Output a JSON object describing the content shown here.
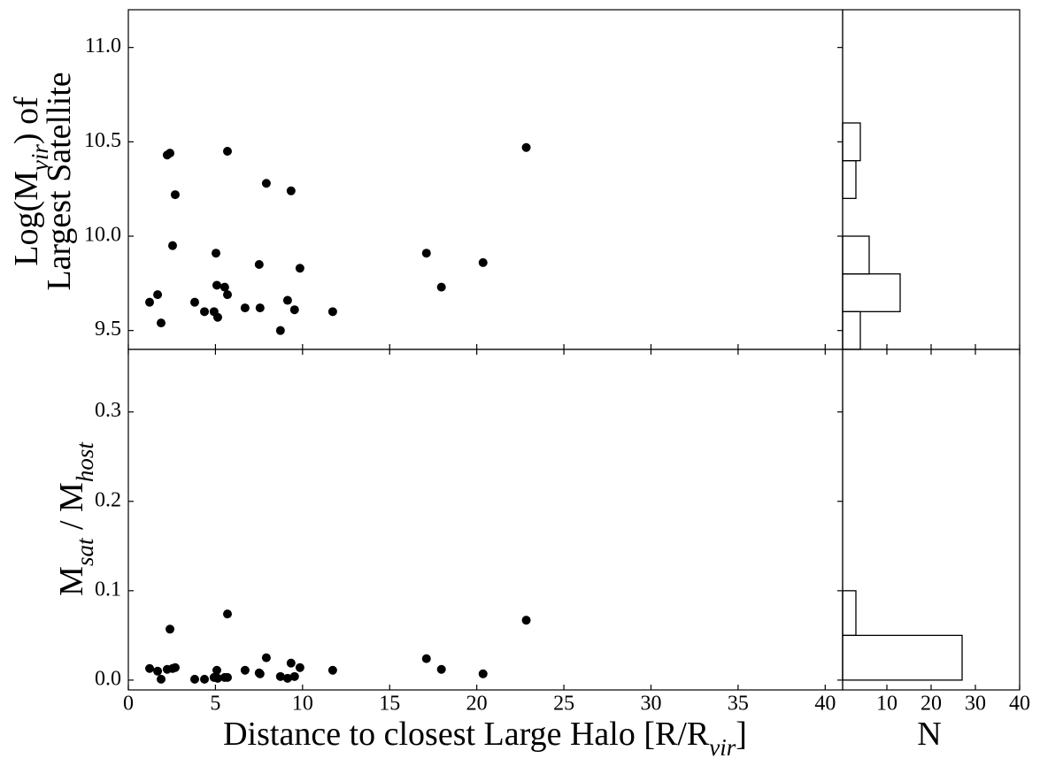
{
  "chart_data": [
    {
      "type": "scatter",
      "ylabel": [
        [
          {
            "text": "Log(M"
          },
          {
            "text": "vir",
            "sub": true
          },
          {
            "text": ") of"
          }
        ],
        [
          {
            "text": "Largest Satellite"
          }
        ]
      ],
      "x": [
        1.22,
        1.68,
        1.88,
        2.23,
        2.39,
        2.54,
        2.69,
        3.81,
        4.37,
        4.92,
        5.03,
        5.08,
        5.13,
        5.53,
        5.69,
        5.69,
        6.7,
        7.56,
        7.51,
        7.92,
        8.73,
        9.14,
        9.34,
        9.54,
        9.85,
        11.73,
        17.11,
        17.97,
        20.36,
        22.84
      ],
      "y": [
        9.65,
        9.69,
        9.54,
        10.43,
        10.44,
        9.95,
        10.22,
        9.65,
        9.6,
        9.6,
        9.91,
        9.74,
        9.57,
        9.73,
        9.69,
        10.45,
        9.62,
        9.62,
        9.85,
        10.28,
        9.5,
        9.66,
        10.24,
        9.61,
        9.83,
        9.6,
        9.91,
        9.73,
        9.86,
        10.47
      ],
      "color": "#000000",
      "xlim": [
        0,
        41
      ],
      "ylim": [
        9.4,
        11.2
      ],
      "yticks": [
        9.5,
        {
          "value": 10,
          "label": "10.0"
        },
        10.5,
        {
          "value": 11,
          "label": "11.0"
        }
      ]
    },
    {
      "type": "scatter",
      "xlabel": [
        [
          {
            "text": "Distance to closest Large Halo [R/R"
          },
          {
            "text": "vir",
            "sub": true
          },
          {
            "text": "]"
          }
        ]
      ],
      "ylabel": [
        [
          {
            "text": "M"
          },
          {
            "text": "sat",
            "sub": true
          },
          {
            "text": " / M"
          },
          {
            "text": "host",
            "sub": true
          }
        ]
      ],
      "x": [
        1.22,
        1.68,
        1.88,
        2.23,
        2.39,
        2.54,
        2.69,
        3.81,
        4.37,
        4.92,
        5.03,
        5.08,
        5.13,
        5.53,
        5.69,
        5.69,
        6.7,
        7.56,
        7.51,
        7.92,
        8.73,
        9.14,
        9.34,
        9.54,
        9.85,
        11.73,
        17.11,
        17.97,
        20.36,
        22.84
      ],
      "y": [
        0.013,
        0.01,
        0.001,
        0.012,
        0.057,
        0.013,
        0.014,
        0.001,
        0.001,
        0.003,
        0.003,
        0.011,
        0.002,
        0.003,
        0.003,
        0.074,
        0.011,
        0.007,
        0.008,
        0.025,
        0.004,
        0.002,
        0.019,
        0.004,
        0.014,
        0.011,
        0.024,
        0.012,
        0.007,
        0.067
      ],
      "color": "#000000",
      "xlim": [
        0,
        41
      ],
      "ylim": [
        -0.011,
        0.37
      ],
      "xticks": [
        0,
        5,
        10,
        15,
        20,
        25,
        30,
        35,
        40
      ],
      "yticks": [
        {
          "value": 0,
          "label": "0.0"
        },
        0.1,
        0.2,
        0.3
      ]
    },
    {
      "type": "histogram",
      "orientation": "horizontal",
      "bins": [
        9.4,
        9.6,
        9.8,
        10.0,
        10.2,
        10.4,
        10.6
      ],
      "counts": [
        4,
        13,
        6,
        0,
        3,
        4
      ],
      "color": "#000000",
      "xlim": [
        0,
        40
      ],
      "ylim": [
        9.4,
        11.2
      ]
    },
    {
      "type": "histogram",
      "orientation": "horizontal",
      "xlabel": [
        [
          {
            "text": "N"
          }
        ]
      ],
      "bins": [
        0,
        0.05,
        0.1
      ],
      "counts": [
        27,
        3
      ],
      "color": "#000000",
      "xlim": [
        0,
        40
      ],
      "ylim": [
        -0.011,
        0.37
      ],
      "xticks": [
        10,
        20,
        30,
        40
      ]
    }
  ]
}
